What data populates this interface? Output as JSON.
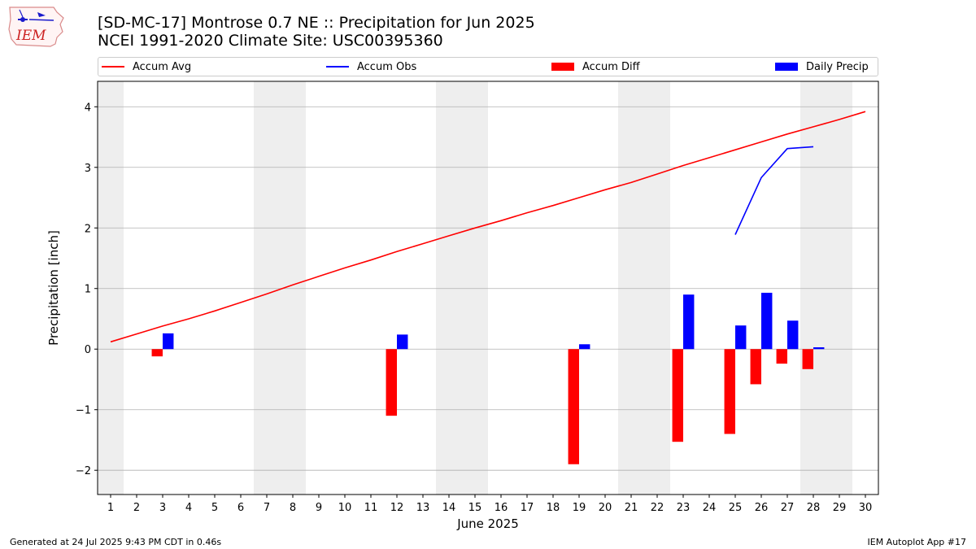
{
  "header": {
    "title_line1": "[SD-MC-17] Montrose 0.7 NE :: Precipitation for Jun 2025",
    "title_line2": "NCEI 1991-2020 Climate Site: USC00395360"
  },
  "logo": {
    "text": "IEM"
  },
  "footer": {
    "left": "Generated at 24 Jul 2025 9:43 PM CDT in 0.46s",
    "right": "IEM Autoplot App #17"
  },
  "colors": {
    "accum_avg": "#ff0000",
    "accum_obs": "#0000ff",
    "accum_diff": "#ff0000",
    "daily_precip": "#0000ff",
    "weekend_shade": "#eeeeee",
    "grid": "#b0b0b0"
  },
  "chart_data": {
    "type": "bar",
    "xlabel": "June 2025",
    "ylabel": "Precipitation [inch]",
    "ylim": [
      -2.4,
      4.42
    ],
    "yticks": [
      -2,
      -1,
      0,
      1,
      2,
      3,
      4
    ],
    "ytick_labels": [
      "−2",
      "−1",
      "0",
      "1",
      "2",
      "3",
      "4"
    ],
    "xlim": [
      0.5,
      30.5
    ],
    "x": [
      1,
      2,
      3,
      4,
      5,
      6,
      7,
      8,
      9,
      10,
      11,
      12,
      13,
      14,
      15,
      16,
      17,
      18,
      19,
      20,
      21,
      22,
      23,
      24,
      25,
      26,
      27,
      28,
      29,
      30
    ],
    "xtick_labels": [
      "1",
      "2",
      "3",
      "4",
      "5",
      "6",
      "7",
      "8",
      "9",
      "10",
      "11",
      "12",
      "13",
      "14",
      "15",
      "16",
      "17",
      "18",
      "19",
      "20",
      "21",
      "22",
      "23",
      "24",
      "25",
      "26",
      "27",
      "28",
      "29",
      "30"
    ],
    "grid": "horizontal",
    "legend_placement": "top",
    "weekend_shading": [
      [
        0.5,
        1.5
      ],
      [
        6.5,
        8.5
      ],
      [
        13.5,
        15.5
      ],
      [
        20.5,
        22.5
      ],
      [
        27.5,
        29.5
      ]
    ],
    "legend": [
      {
        "name": "Accum Avg",
        "style": "line"
      },
      {
        "name": "Accum Obs",
        "style": "line"
      },
      {
        "name": "Accum Diff",
        "style": "bar"
      },
      {
        "name": "Daily Precip",
        "style": "bar"
      }
    ],
    "series": [
      {
        "name": "Accum Avg",
        "type": "line",
        "x": [
          1,
          2,
          3,
          4,
          5,
          6,
          7,
          8,
          9,
          10,
          11,
          12,
          13,
          14,
          15,
          16,
          17,
          18,
          19,
          20,
          21,
          22,
          23,
          24,
          25,
          26,
          27,
          28,
          29,
          30
        ],
        "values": [
          0.12,
          0.25,
          0.38,
          0.5,
          0.63,
          0.77,
          0.91,
          1.06,
          1.2,
          1.34,
          1.47,
          1.61,
          1.74,
          1.87,
          2.0,
          2.12,
          2.25,
          2.37,
          2.5,
          2.63,
          2.75,
          2.89,
          3.03,
          3.16,
          3.29,
          3.42,
          3.55,
          3.67,
          3.79,
          3.92
        ]
      },
      {
        "name": "Accum Obs",
        "type": "line",
        "x": [
          25,
          26,
          27,
          28
        ],
        "values": [
          1.89,
          2.83,
          3.31,
          3.34
        ]
      },
      {
        "name": "Accum Diff",
        "type": "bar",
        "x": [
          3,
          12,
          19,
          23,
          25,
          26,
          27,
          28
        ],
        "values": [
          -0.12,
          -1.1,
          -1.9,
          -1.53,
          -1.4,
          -0.58,
          -0.24,
          -0.33
        ]
      },
      {
        "name": "Daily Precip",
        "type": "bar",
        "x": [
          3,
          12,
          19,
          23,
          25,
          26,
          27,
          28
        ],
        "values": [
          0.26,
          0.24,
          0.08,
          0.9,
          0.39,
          0.93,
          0.47,
          0.03
        ]
      }
    ]
  }
}
